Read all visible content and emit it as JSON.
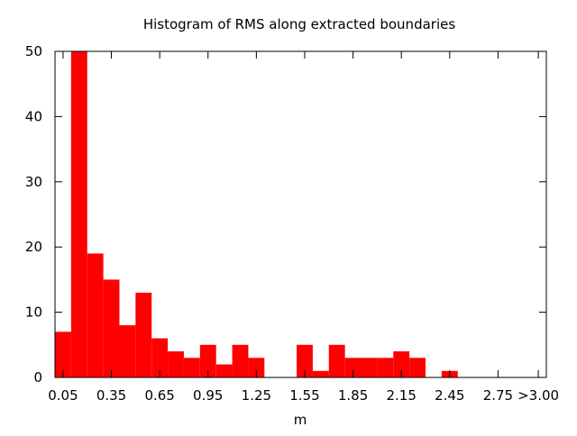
{
  "chart_data": {
    "type": "bar",
    "title": "Histogram of RMS along extracted boundaries",
    "xlabel": "m",
    "ylabel": "",
    "bar_color": "#ff0000",
    "bin_width": 0.1,
    "x_range": [
      0.0,
      3.05
    ],
    "ylim": [
      0,
      50
    ],
    "y_ticks": [
      0,
      10,
      20,
      30,
      40,
      50
    ],
    "x_tick_labels": [
      {
        "value": 0.05,
        "label": "0.05"
      },
      {
        "value": 0.35,
        "label": "0.35"
      },
      {
        "value": 0.65,
        "label": "0.65"
      },
      {
        "value": 0.95,
        "label": "0.95"
      },
      {
        "value": 1.25,
        "label": "1.25"
      },
      {
        "value": 1.55,
        "label": "1.55"
      },
      {
        "value": 1.85,
        "label": "1.85"
      },
      {
        "value": 2.15,
        "label": "2.15"
      },
      {
        "value": 2.45,
        "label": "2.45"
      },
      {
        "value": 2.75,
        "label": "2.75"
      },
      {
        "value": 3.0,
        "label": ">3.00"
      }
    ],
    "bins": [
      0.05,
      0.15,
      0.25,
      0.35,
      0.45,
      0.55,
      0.65,
      0.75,
      0.85,
      0.95,
      1.05,
      1.15,
      1.25,
      1.35,
      1.45,
      1.55,
      1.65,
      1.75,
      1.85,
      1.95,
      2.05,
      2.15,
      2.25,
      2.35,
      2.45,
      2.55,
      2.65,
      2.75,
      2.85,
      2.95
    ],
    "values": [
      7,
      50,
      19,
      15,
      8,
      13,
      6,
      4,
      3,
      5,
      2,
      5,
      3,
      0,
      0,
      5,
      1,
      5,
      3,
      3,
      3,
      4,
      3,
      0,
      1,
      0,
      0,
      0,
      0,
      0
    ],
    "grid": false,
    "legend": "none"
  }
}
